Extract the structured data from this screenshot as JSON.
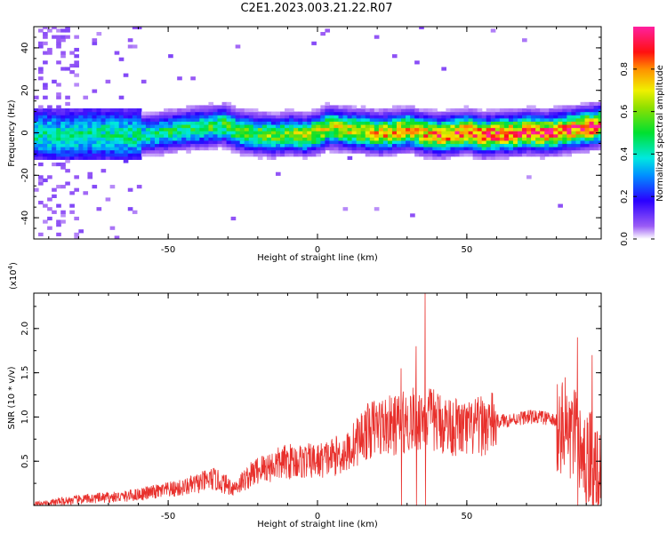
{
  "title": "C2E1.2023.003.21.22.R07",
  "colors": {
    "snr_line": "#e8302c",
    "frame": "#000000",
    "spectrogram_background": "#ffffff"
  },
  "chart_data": [
    {
      "type": "heatmap",
      "xlabel": "Height of straight line (km)",
      "ylabel": "Frequency (Hz)",
      "xlim": [
        -95,
        95
      ],
      "ylim": [
        -50,
        50
      ],
      "xticks": [
        -50,
        0,
        50
      ],
      "yticks": [
        -40,
        -20,
        0,
        20,
        40
      ],
      "colorbar": {
        "label": "Normalized spectral amplitude",
        "range": [
          0,
          1
        ],
        "ticks": [
          "0.0",
          "0.2",
          "0.4",
          "0.6",
          "0.8"
        ],
        "colormap": "rainbow (white-purple-blue-cyan-green-yellow-orange-red-magenta)"
      },
      "ridge": {
        "x": [
          -95,
          -85,
          -75,
          -65,
          -55,
          -45,
          -38,
          -32,
          -27,
          -22,
          -15,
          -10,
          -5,
          0,
          3,
          8,
          15,
          20,
          25,
          30,
          35,
          40,
          45,
          50,
          55,
          60,
          65,
          70,
          75,
          80,
          85,
          90,
          95
        ],
        "frequency": [
          -1,
          -2,
          -1,
          -2,
          -1,
          1,
          2,
          3,
          0,
          -1,
          -2,
          -1,
          -2,
          0,
          2,
          1,
          0,
          -1,
          0,
          1,
          -1,
          -2,
          -1,
          0,
          -2,
          -1,
          -1,
          0,
          -1,
          0,
          1,
          2,
          3
        ]
      }
    },
    {
      "type": "line",
      "xlabel": "Height of straight line (km)",
      "ylabel": "SNR (10 * v/v)",
      "scale_label": "(x10",
      "scale_exponent": "4",
      "xlim": [
        -95,
        95
      ],
      "ylim": [
        0,
        2.4
      ],
      "xticks": [
        -50,
        0,
        50
      ],
      "yticks": [
        "0.5",
        "1.0",
        "1.5",
        "2.0"
      ],
      "series": [
        {
          "baseline": {
            "x": [
              -95,
              -85,
              -75,
              -65,
              -55,
              -45,
              -35,
              -28,
              -20,
              -10,
              0,
              10,
              15,
              20,
              25,
              30,
              35,
              40,
              45,
              50,
              55,
              60,
              65,
              70,
              75,
              80,
              85,
              90,
              95
            ],
            "y": [
              0.0,
              0.05,
              0.08,
              0.1,
              0.15,
              0.2,
              0.3,
              0.2,
              0.4,
              0.5,
              0.5,
              0.6,
              0.8,
              0.9,
              0.9,
              0.95,
              1.0,
              0.95,
              0.9,
              0.85,
              0.9,
              0.95,
              0.97,
              1.0,
              1.0,
              0.95,
              0.8,
              0.5,
              0.4
            ]
          },
          "notable_peaks": [
            {
              "x": 36,
              "y": 2.4
            },
            {
              "x": 28,
              "y": 1.55
            },
            {
              "x": 33,
              "y": 1.8
            },
            {
              "x": 87,
              "y": 1.9
            },
            {
              "x": 92,
              "y": 1.7
            }
          ]
        }
      ]
    }
  ]
}
